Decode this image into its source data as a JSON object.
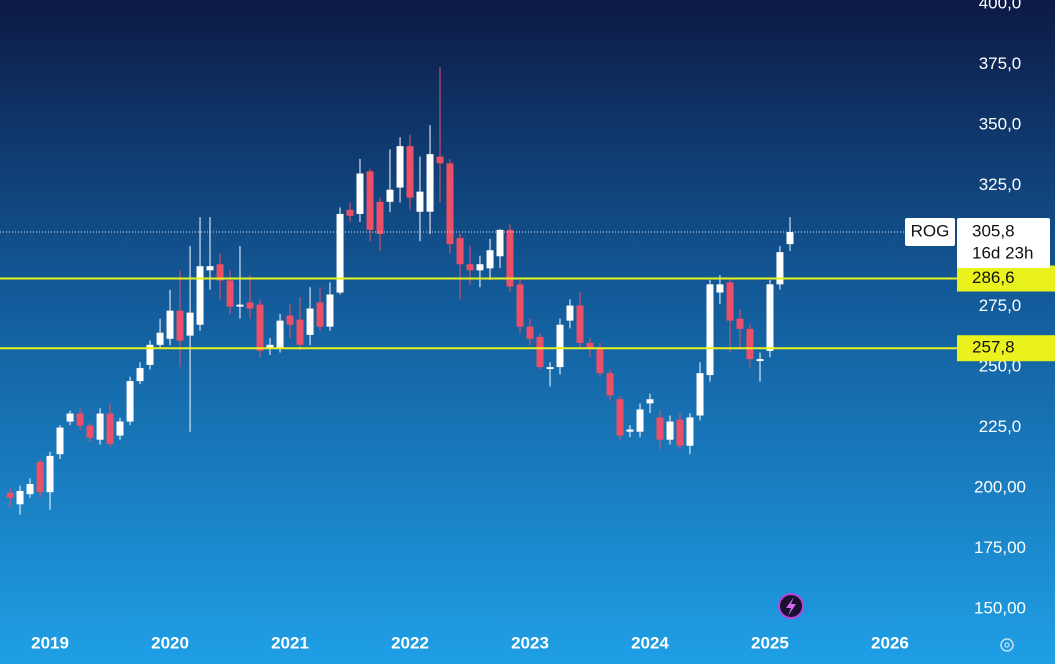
{
  "chart_data": {
    "type": "candlestick",
    "symbol": "ROG",
    "countdown": "16d 23h",
    "last": {
      "value": 305.8,
      "label": "305,8"
    },
    "levels": [
      {
        "value": 286.6,
        "label": "286,6"
      },
      {
        "value": 257.8,
        "label": "257,8"
      }
    ],
    "level_color": "#e9f21d",
    "up_color": "#ffffff",
    "down_color": "#ec4f68",
    "x": [
      2018.667,
      2018.75,
      2018.833,
      2018.917,
      2019,
      2019.083,
      2019.167,
      2019.25,
      2019.333,
      2019.417,
      2019.5,
      2019.583,
      2019.667,
      2019.75,
      2019.833,
      2019.917,
      2020,
      2020.083,
      2020.167,
      2020.25,
      2020.333,
      2020.417,
      2020.5,
      2020.583,
      2020.667,
      2020.75,
      2020.833,
      2020.917,
      2021,
      2021.083,
      2021.167,
      2021.25,
      2021.333,
      2021.417,
      2021.5,
      2021.583,
      2021.667,
      2021.75,
      2021.833,
      2021.917,
      2022,
      2022.083,
      2022.167,
      2022.25,
      2022.333,
      2022.417,
      2022.5,
      2022.583,
      2022.667,
      2022.75,
      2022.833,
      2022.917,
      2023,
      2023.083,
      2023.167,
      2023.25,
      2023.333,
      2023.417,
      2023.5,
      2023.583,
      2023.667,
      2023.75,
      2023.833,
      2023.917,
      2024,
      2024.083,
      2024.167,
      2024.25,
      2024.333,
      2024.417,
      2024.5,
      2024.583,
      2024.667,
      2024.75,
      2024.833,
      2024.917,
      2025,
      2025.083,
      2025.167
    ],
    "open": [
      198,
      193.3,
      197.5,
      210.8,
      198.3,
      214,
      227.5,
      230.8,
      225.8,
      220,
      230.8,
      221.7,
      227.5,
      244.2,
      250.9,
      259.2,
      261.7,
      273.3,
      263,
      267.5,
      290,
      292.5,
      285.8,
      275,
      276.7,
      275.8,
      257.5,
      258,
      271.3,
      269.6,
      263.3,
      276.7,
      266.7,
      280.8,
      315,
      313.3,
      330.9,
      318.3,
      318.3,
      324.2,
      341.3,
      314.2,
      314.2,
      337,
      334.2,
      303.3,
      292.5,
      290,
      290.8,
      295.8,
      306.7,
      284.2,
      266.7,
      262.5,
      249.2,
      250,
      269.2,
      275.4,
      260,
      257.5,
      247.5,
      236.7,
      223.3,
      223.3,
      235,
      229.2,
      220,
      228.3,
      217.5,
      230,
      246.7,
      280.8,
      285,
      270,
      265.8,
      252.5,
      256.7,
      284.2,
      300.8
    ],
    "high": [
      200,
      201,
      204,
      212,
      215,
      226,
      232,
      233,
      227,
      233,
      235,
      229,
      246,
      252,
      261,
      270,
      282,
      290,
      300,
      312,
      312,
      297,
      290,
      300,
      288,
      278,
      262,
      272,
      276,
      279,
      283,
      283,
      285,
      316,
      318,
      336,
      332,
      320,
      340,
      345,
      346,
      337,
      350,
      374,
      336,
      305,
      300,
      296,
      303,
      307,
      309,
      286,
      270,
      264,
      252,
      270,
      278,
      281,
      262,
      260,
      249,
      238,
      226,
      235,
      239,
      232,
      230,
      231,
      231,
      252,
      286,
      288,
      287,
      274,
      268,
      256,
      286,
      300,
      312
    ],
    "low": [
      192,
      189,
      196,
      196,
      191,
      212,
      226,
      224,
      219,
      218,
      217,
      220,
      226,
      243,
      249,
      258,
      259,
      250,
      223.3,
      265,
      282,
      278,
      272,
      270,
      270,
      254,
      255,
      256,
      262,
      257,
      259,
      265,
      265,
      280,
      310,
      310,
      302,
      298,
      314,
      318,
      315,
      302,
      305,
      318,
      297,
      278,
      284,
      283,
      286,
      291,
      281,
      264,
      259,
      249,
      242,
      247,
      266,
      258,
      254,
      246,
      236,
      220,
      221,
      221,
      231,
      216,
      218,
      216,
      214,
      228,
      244,
      276,
      256,
      258,
      250,
      244,
      254,
      282,
      298
    ],
    "close": [
      196,
      198.8,
      201.7,
      198.3,
      213.3,
      225,
      230.8,
      225.8,
      220.8,
      230.8,
      218.3,
      227.5,
      244.2,
      249.6,
      259.2,
      264.2,
      273.3,
      260.9,
      272.5,
      291.7,
      291.7,
      285.8,
      275,
      275.8,
      274.2,
      256.7,
      259.2,
      269.2,
      267.5,
      259.2,
      274.2,
      266.7,
      280,
      313.3,
      312.5,
      330,
      306.7,
      305,
      323.3,
      341.3,
      320,
      322.5,
      338,
      334.2,
      300.8,
      292.5,
      290,
      292.5,
      298.3,
      306.7,
      283.3,
      266.7,
      261.7,
      250,
      250,
      267.5,
      275.4,
      260,
      257.5,
      247.5,
      238.3,
      221.7,
      224.2,
      232.5,
      236.7,
      220,
      227.5,
      217.5,
      229.2,
      247.5,
      284.2,
      284.2,
      269.2,
      265.8,
      253.3,
      253.3,
      284.2,
      297.5,
      305.8
    ],
    "xlim": [
      2018.583,
      2026.542
    ],
    "xticks": [
      2019,
      2020,
      2021,
      2022,
      2023,
      2024,
      2025,
      2026
    ],
    "ylim": [
      127.3,
      401.7
    ],
    "yticks": [
      {
        "value": 150,
        "label": "150,00"
      },
      {
        "value": 175,
        "label": "175,00"
      },
      {
        "value": 200,
        "label": "200,00"
      },
      {
        "value": 225,
        "label": "225,0"
      },
      {
        "value": 250,
        "label": "250,0"
      },
      {
        "value": 275,
        "label": "275,0"
      },
      {
        "value": 325,
        "label": "325,0"
      },
      {
        "value": 350,
        "label": "350,0"
      },
      {
        "value": 375,
        "label": "375,0"
      },
      {
        "value": 400,
        "label": "400,0"
      }
    ]
  }
}
